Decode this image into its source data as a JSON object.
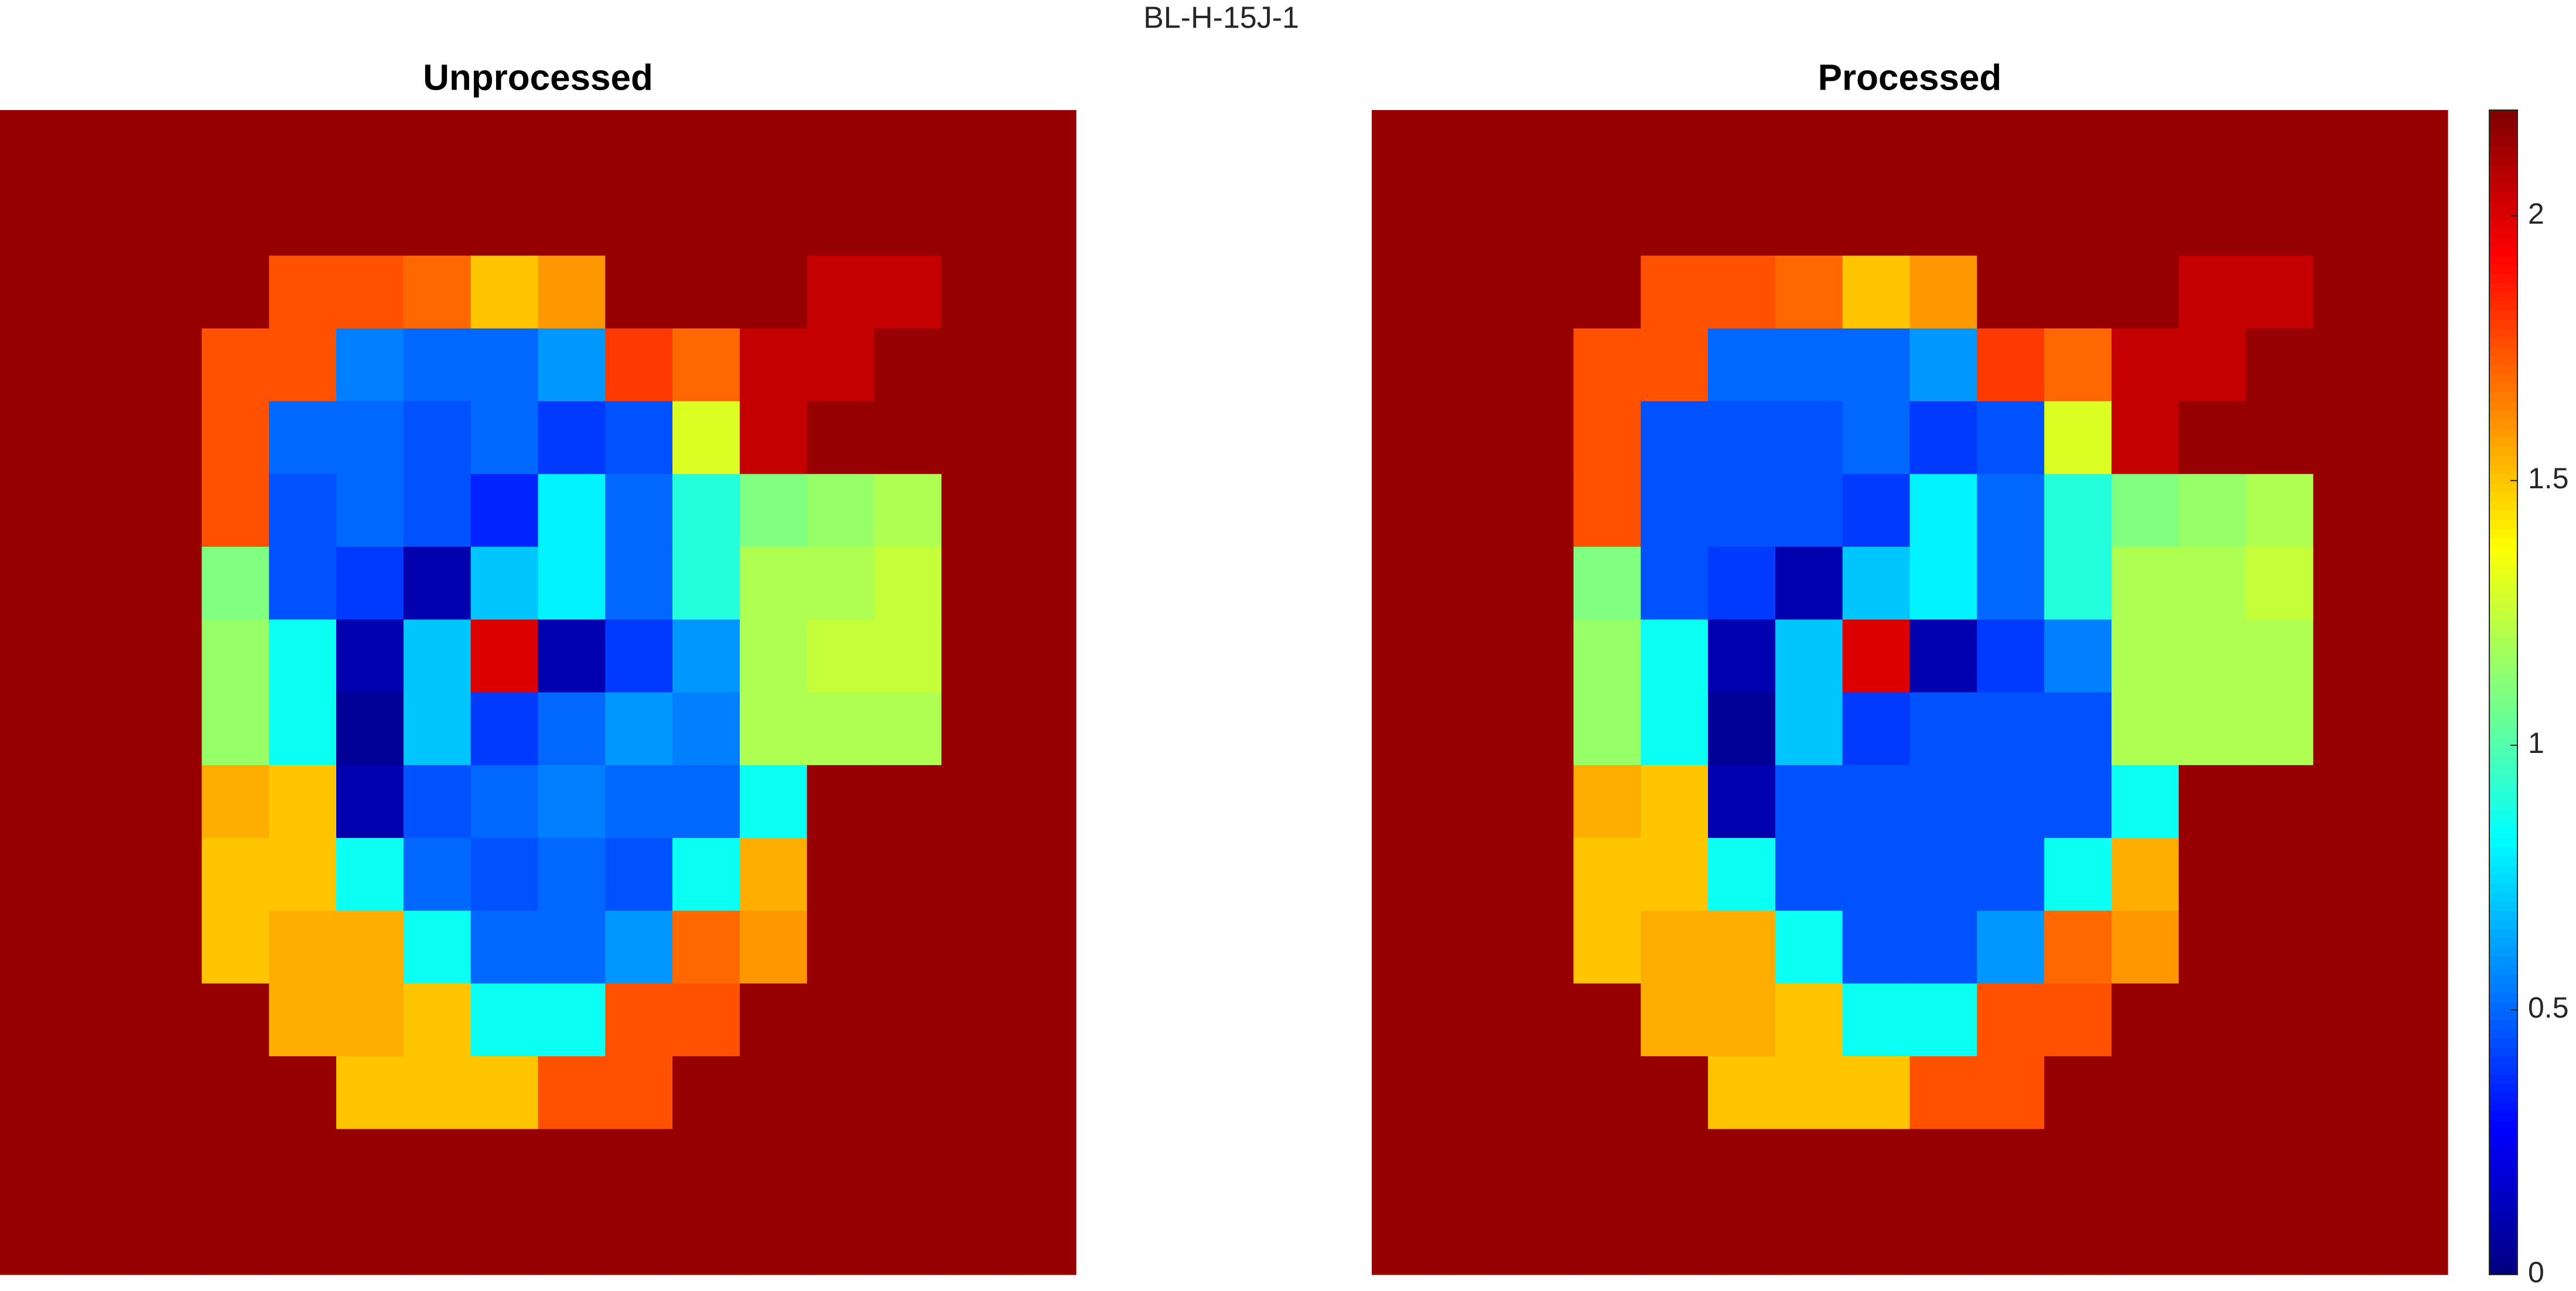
{
  "chart_data": {
    "type": "heatmap",
    "title": "BL-H-15J-1",
    "colormap": "jet",
    "clim": [
      0,
      2.2
    ],
    "colorbar_ticks": [
      0,
      0.5,
      1,
      1.5,
      2
    ],
    "images": [
      {
        "title": "Unprocessed",
        "values": [
          [
            2.15,
            2.15,
            2.15,
            2.15,
            2.15,
            2.15,
            2.15,
            2.15,
            2.15,
            2.15,
            2.15,
            2.15,
            2.15,
            2.15,
            2.15,
            2.15
          ],
          [
            2.15,
            2.15,
            2.15,
            2.15,
            2.15,
            2.15,
            2.15,
            2.15,
            2.15,
            2.15,
            2.15,
            2.15,
            2.15,
            2.15,
            2.15,
            2.15
          ],
          [
            2.15,
            2.15,
            2.15,
            2.15,
            1.75,
            1.75,
            1.7,
            1.5,
            1.6,
            2.15,
            2.15,
            2.15,
            2.05,
            2.05,
            2.15,
            2.15
          ],
          [
            2.15,
            2.15,
            2.15,
            1.75,
            1.75,
            0.55,
            0.5,
            0.5,
            0.6,
            1.8,
            1.7,
            2.05,
            2.05,
            2.15,
            2.15,
            2.15
          ],
          [
            2.15,
            2.15,
            2.15,
            1.75,
            0.5,
            0.5,
            0.45,
            0.5,
            0.4,
            0.45,
            1.3,
            2.05,
            2.15,
            2.15,
            2.15,
            2.15
          ],
          [
            2.15,
            2.15,
            2.15,
            1.75,
            0.45,
            0.5,
            0.45,
            0.35,
            0.8,
            0.5,
            0.9,
            1.1,
            1.15,
            1.2,
            2.15,
            2.15
          ],
          [
            2.15,
            2.15,
            2.15,
            1.1,
            0.45,
            0.4,
            0.1,
            0.7,
            0.8,
            0.5,
            0.9,
            1.2,
            1.2,
            1.25,
            2.15,
            2.15
          ],
          [
            2.15,
            2.15,
            2.15,
            1.15,
            0.85,
            0.1,
            0.7,
            2.0,
            0.1,
            0.4,
            0.6,
            1.2,
            1.25,
            1.25,
            2.15,
            2.15
          ],
          [
            2.15,
            2.15,
            2.15,
            1.15,
            0.85,
            0.05,
            0.7,
            0.4,
            0.5,
            0.6,
            0.55,
            1.2,
            1.2,
            1.2,
            2.15,
            2.15
          ],
          [
            2.15,
            2.15,
            2.15,
            1.55,
            1.5,
            0.1,
            0.45,
            0.5,
            0.55,
            0.5,
            0.5,
            0.85,
            2.15,
            2.15,
            2.15,
            2.15
          ],
          [
            2.15,
            2.15,
            2.15,
            1.5,
            1.5,
            0.85,
            0.5,
            0.45,
            0.5,
            0.45,
            0.85,
            1.55,
            2.15,
            2.15,
            2.15,
            2.15
          ],
          [
            2.15,
            2.15,
            2.15,
            1.5,
            1.55,
            1.55,
            0.85,
            0.5,
            0.5,
            0.6,
            1.7,
            1.6,
            2.15,
            2.15,
            2.15,
            2.15
          ],
          [
            2.15,
            2.15,
            2.15,
            2.15,
            1.55,
            1.55,
            1.5,
            0.85,
            0.85,
            1.75,
            1.75,
            2.15,
            2.15,
            2.15,
            2.15,
            2.15
          ],
          [
            2.15,
            2.15,
            2.15,
            2.15,
            2.15,
            1.5,
            1.5,
            1.5,
            1.75,
            1.75,
            2.15,
            2.15,
            2.15,
            2.15,
            2.15,
            2.15
          ],
          [
            2.15,
            2.15,
            2.15,
            2.15,
            2.15,
            2.15,
            2.15,
            2.15,
            2.15,
            2.15,
            2.15,
            2.15,
            2.15,
            2.15,
            2.15,
            2.15
          ],
          [
            2.15,
            2.15,
            2.15,
            2.15,
            2.15,
            2.15,
            2.15,
            2.15,
            2.15,
            2.15,
            2.15,
            2.15,
            2.15,
            2.15,
            2.15,
            2.15
          ]
        ]
      },
      {
        "title": "Processed",
        "values": [
          [
            2.15,
            2.15,
            2.15,
            2.15,
            2.15,
            2.15,
            2.15,
            2.15,
            2.15,
            2.15,
            2.15,
            2.15,
            2.15,
            2.15,
            2.15,
            2.15
          ],
          [
            2.15,
            2.15,
            2.15,
            2.15,
            2.15,
            2.15,
            2.15,
            2.15,
            2.15,
            2.15,
            2.15,
            2.15,
            2.15,
            2.15,
            2.15,
            2.15
          ],
          [
            2.15,
            2.15,
            2.15,
            2.15,
            1.75,
            1.75,
            1.7,
            1.5,
            1.6,
            2.15,
            2.15,
            2.15,
            2.05,
            2.05,
            2.15,
            2.15
          ],
          [
            2.15,
            2.15,
            2.15,
            1.75,
            1.75,
            0.5,
            0.5,
            0.5,
            0.6,
            1.8,
            1.7,
            2.05,
            2.05,
            2.15,
            2.15,
            2.15
          ],
          [
            2.15,
            2.15,
            2.15,
            1.75,
            0.45,
            0.45,
            0.45,
            0.5,
            0.4,
            0.45,
            1.3,
            2.05,
            2.15,
            2.15,
            2.15,
            2.15
          ],
          [
            2.15,
            2.15,
            2.15,
            1.75,
            0.45,
            0.45,
            0.45,
            0.4,
            0.8,
            0.5,
            0.9,
            1.1,
            1.15,
            1.2,
            2.15,
            2.15
          ],
          [
            2.15,
            2.15,
            2.15,
            1.1,
            0.45,
            0.4,
            0.1,
            0.7,
            0.8,
            0.5,
            0.9,
            1.2,
            1.2,
            1.25,
            2.15,
            2.15
          ],
          [
            2.15,
            2.15,
            2.15,
            1.15,
            0.85,
            0.1,
            0.7,
            2.0,
            0.1,
            0.4,
            0.55,
            1.2,
            1.2,
            1.2,
            2.15,
            2.15
          ],
          [
            2.15,
            2.15,
            2.15,
            1.15,
            0.85,
            0.05,
            0.7,
            0.4,
            0.45,
            0.45,
            0.45,
            1.2,
            1.2,
            1.2,
            2.15,
            2.15
          ],
          [
            2.15,
            2.15,
            2.15,
            1.55,
            1.5,
            0.1,
            0.45,
            0.45,
            0.45,
            0.45,
            0.45,
            0.85,
            2.15,
            2.15,
            2.15,
            2.15
          ],
          [
            2.15,
            2.15,
            2.15,
            1.5,
            1.5,
            0.85,
            0.45,
            0.45,
            0.45,
            0.45,
            0.85,
            1.55,
            2.15,
            2.15,
            2.15,
            2.15
          ],
          [
            2.15,
            2.15,
            2.15,
            1.5,
            1.55,
            1.55,
            0.85,
            0.45,
            0.45,
            0.6,
            1.7,
            1.6,
            2.15,
            2.15,
            2.15,
            2.15
          ],
          [
            2.15,
            2.15,
            2.15,
            2.15,
            1.55,
            1.55,
            1.5,
            0.85,
            0.85,
            1.75,
            1.75,
            2.15,
            2.15,
            2.15,
            2.15,
            2.15
          ],
          [
            2.15,
            2.15,
            2.15,
            2.15,
            2.15,
            1.5,
            1.5,
            1.5,
            1.75,
            1.75,
            2.15,
            2.15,
            2.15,
            2.15,
            2.15,
            2.15
          ],
          [
            2.15,
            2.15,
            2.15,
            2.15,
            2.15,
            2.15,
            2.15,
            2.15,
            2.15,
            2.15,
            2.15,
            2.15,
            2.15,
            2.15,
            2.15,
            2.15
          ],
          [
            2.15,
            2.15,
            2.15,
            2.15,
            2.15,
            2.15,
            2.15,
            2.15,
            2.15,
            2.15,
            2.15,
            2.15,
            2.15,
            2.15,
            2.15,
            2.15
          ]
        ]
      }
    ]
  }
}
